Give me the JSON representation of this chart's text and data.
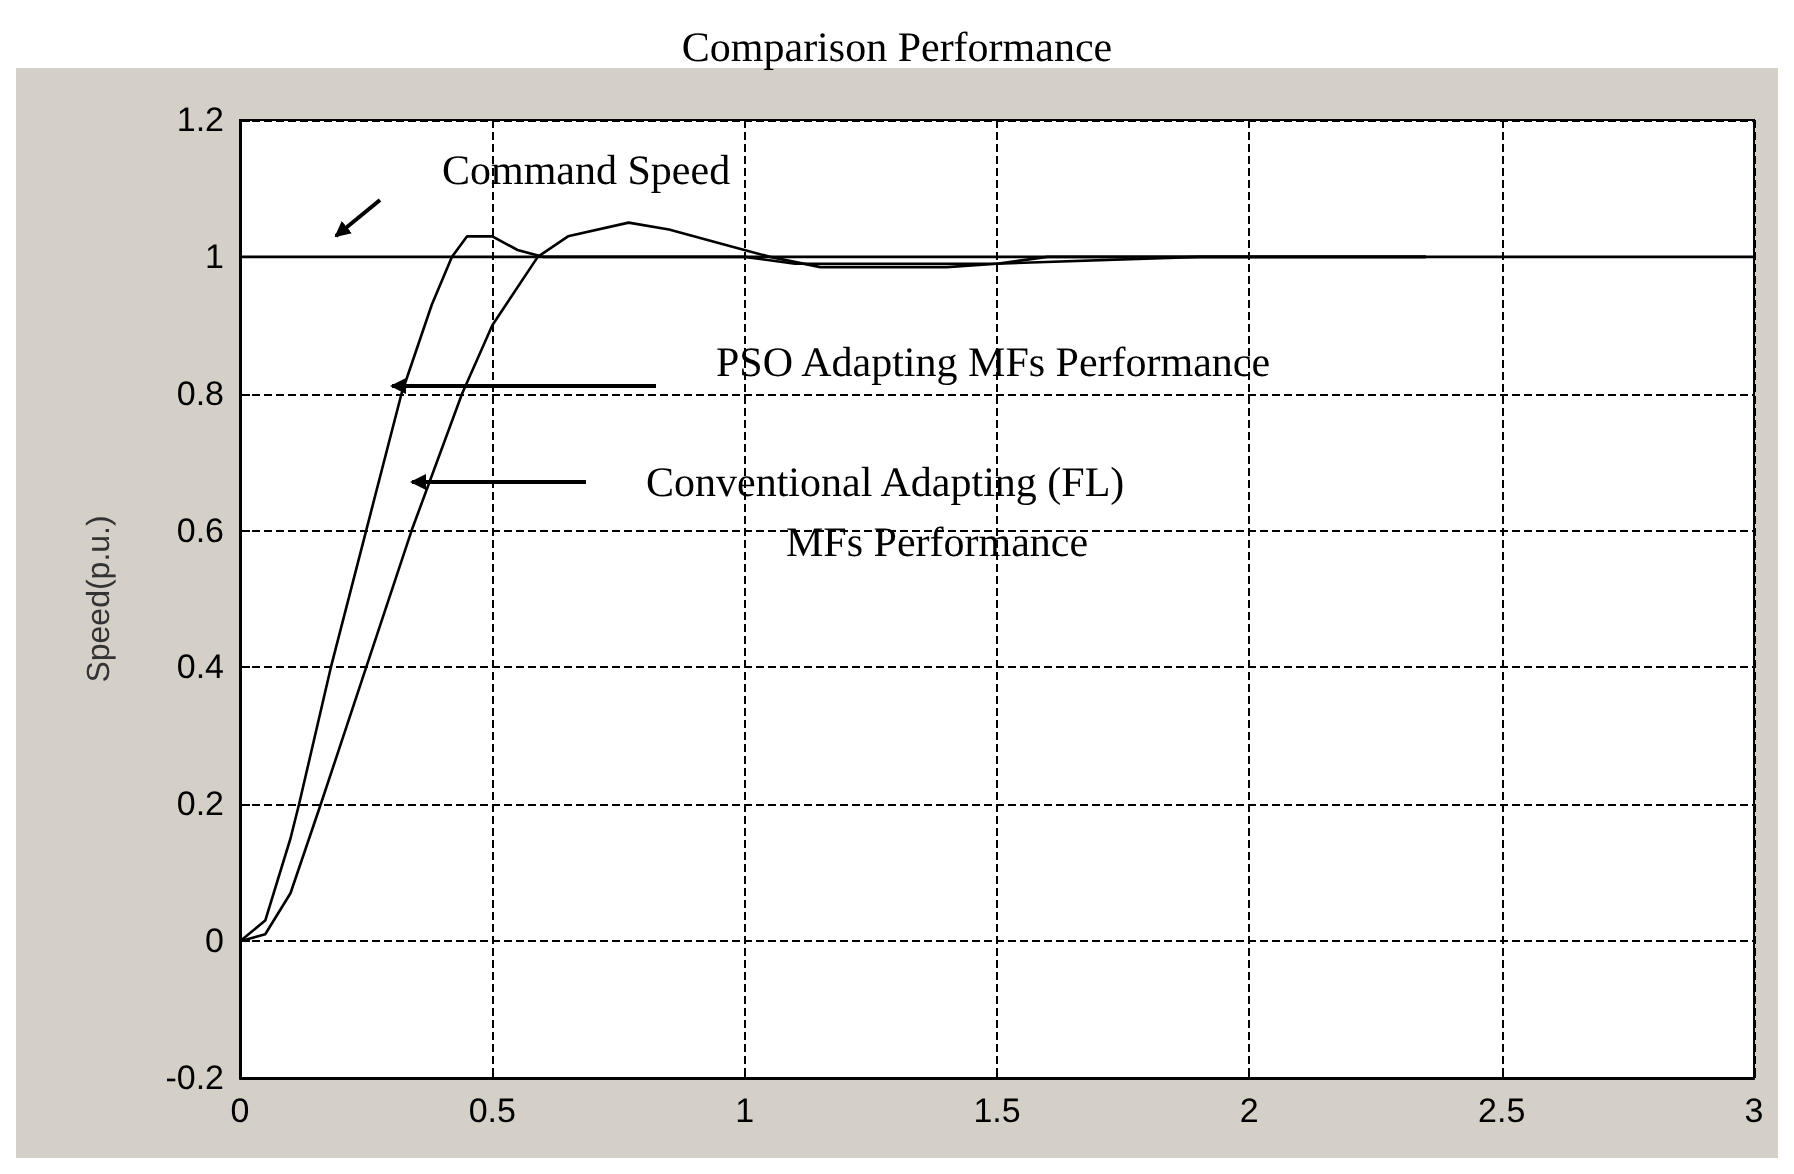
{
  "chart_data": {
    "type": "line",
    "title": "Comparison Performance",
    "ylabel": "Speed(p.u.)",
    "xlim": [
      0,
      3
    ],
    "xticks": [
      0,
      0.5,
      1,
      1.5,
      2,
      2.5,
      3
    ],
    "ylim": [
      -0.2,
      1.2
    ],
    "yticks": [
      -0.2,
      0,
      0.2,
      0.4,
      0.6,
      0.8,
      1,
      1.2
    ],
    "grid": true,
    "marker": "none",
    "line_style": "solid",
    "series": [
      {
        "color": "#000000",
        "x": [
          0,
          3
        ],
        "values": [
          1,
          1
        ]
      },
      {
        "color": "#000000",
        "x": [
          0,
          0.05,
          0.1,
          0.117,
          0.18,
          0.25,
          0.32,
          0.38,
          0.42,
          0.45,
          0.5,
          0.55,
          0.6,
          1.0,
          1.1,
          1.5,
          1.6,
          2.35
        ],
        "values": [
          0,
          0.03,
          0.15,
          0.2,
          0.4,
          0.6,
          0.8,
          0.93,
          1.0,
          1.03,
          1.03,
          1.01,
          1.0,
          1.0,
          0.99,
          0.99,
          1.0,
          1.0
        ]
      },
      {
        "color": "#000000",
        "x": [
          0,
          0.05,
          0.1,
          0.16,
          0.25,
          0.34,
          0.44,
          0.5,
          0.59,
          0.65,
          0.77,
          0.85,
          0.95,
          1.05,
          1.15,
          1.4,
          1.5,
          1.9,
          2.35
        ],
        "values": [
          0,
          0.01,
          0.07,
          0.2,
          0.4,
          0.6,
          0.8,
          0.9,
          1.0,
          1.03,
          1.05,
          1.04,
          1.02,
          1.0,
          0.985,
          0.985,
          0.99,
          1.0,
          1.0
        ]
      }
    ],
    "annotations": [
      "Command Speed",
      "PSO Adapting MFs Performance",
      "Conventional Adapting (FL)\nMFs Performance"
    ]
  }
}
